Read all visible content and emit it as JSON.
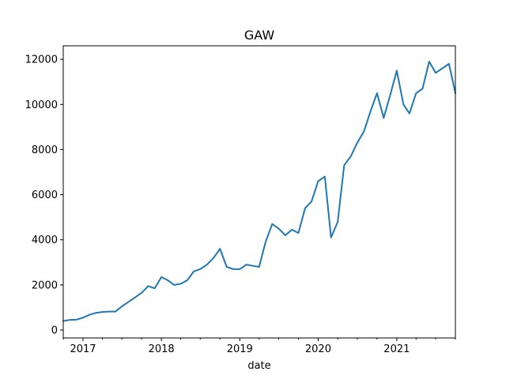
{
  "chart_data": {
    "type": "line",
    "title": "GAW",
    "xlabel": "date",
    "ylabel": "",
    "x_ticks": [
      "2017",
      "2018",
      "2019",
      "2020",
      "2021"
    ],
    "y_ticks": [
      0,
      2000,
      4000,
      6000,
      8000,
      10000,
      12000
    ],
    "xlim": [
      "2016-10-01",
      "2021-10-01"
    ],
    "ylim": [
      -350,
      12600
    ],
    "grid": false,
    "line_color": "#1f77b4",
    "series": [
      {
        "x": [
          "2016-10-01",
          "2016-11-01",
          "2016-12-01",
          "2017-01-01",
          "2017-02-01",
          "2017-03-01",
          "2017-04-01",
          "2017-05-01",
          "2017-06-01",
          "2017-07-01",
          "2017-08-01",
          "2017-09-01",
          "2017-10-01",
          "2017-11-01",
          "2017-12-01",
          "2018-01-01",
          "2018-02-01",
          "2018-03-01",
          "2018-04-01",
          "2018-05-01",
          "2018-06-01",
          "2018-07-01",
          "2018-08-01",
          "2018-09-01",
          "2018-10-01",
          "2018-11-01",
          "2018-12-01",
          "2019-01-01",
          "2019-02-01",
          "2019-03-01",
          "2019-04-01",
          "2019-05-01",
          "2019-06-01",
          "2019-07-01",
          "2019-08-01",
          "2019-09-01",
          "2019-10-01",
          "2019-11-01",
          "2019-12-01",
          "2020-01-01",
          "2020-02-01",
          "2020-03-01",
          "2020-04-01",
          "2020-05-01",
          "2020-06-01",
          "2020-07-01",
          "2020-08-01",
          "2020-09-01",
          "2020-10-01",
          "2020-11-01",
          "2020-12-01",
          "2021-01-01",
          "2021-02-01",
          "2021-03-01",
          "2021-04-01",
          "2021-05-01",
          "2021-06-01",
          "2021-07-01",
          "2021-08-01",
          "2021-09-01",
          "2021-10-01"
        ],
        "y": [
          400,
          450,
          460,
          550,
          680,
          760,
          800,
          820,
          820,
          1050,
          1250,
          1450,
          1650,
          1950,
          1850,
          2350,
          2200,
          2000,
          2050,
          2200,
          2600,
          2700,
          2900,
          3200,
          3600,
          2800,
          2700,
          2700,
          2900,
          2850,
          2800,
          3900,
          4700,
          4500,
          4200,
          4450,
          4300,
          5400,
          5700,
          6600,
          6800,
          4100,
          4800,
          7300,
          7700,
          8300,
          8800,
          9700,
          10500,
          9400,
          10400,
          11500,
          10000,
          9600,
          10500,
          10700,
          11900,
          11400,
          11600,
          11800,
          10500
        ]
      }
    ]
  }
}
